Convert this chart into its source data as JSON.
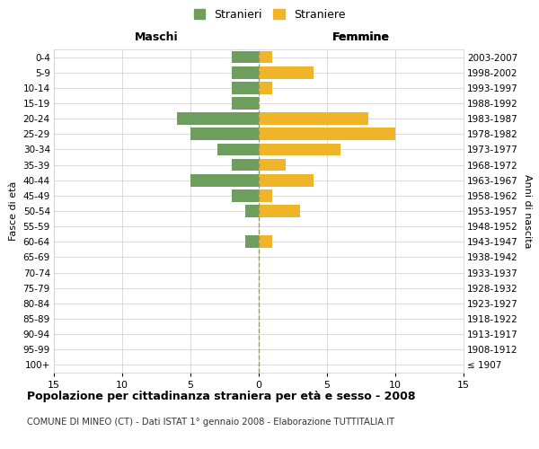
{
  "age_groups": [
    "100+",
    "95-99",
    "90-94",
    "85-89",
    "80-84",
    "75-79",
    "70-74",
    "65-69",
    "60-64",
    "55-59",
    "50-54",
    "45-49",
    "40-44",
    "35-39",
    "30-34",
    "25-29",
    "20-24",
    "15-19",
    "10-14",
    "5-9",
    "0-4"
  ],
  "birth_years": [
    "≤ 1907",
    "1908-1912",
    "1913-1917",
    "1918-1922",
    "1923-1927",
    "1928-1932",
    "1933-1937",
    "1938-1942",
    "1943-1947",
    "1948-1952",
    "1953-1957",
    "1958-1962",
    "1963-1967",
    "1968-1972",
    "1973-1977",
    "1978-1982",
    "1983-1987",
    "1988-1992",
    "1993-1997",
    "1998-2002",
    "2003-2007"
  ],
  "maschi": [
    0,
    0,
    0,
    0,
    0,
    0,
    0,
    0,
    1,
    0,
    1,
    2,
    5,
    2,
    3,
    5,
    6,
    2,
    2,
    2,
    2
  ],
  "femmine": [
    0,
    0,
    0,
    0,
    0,
    0,
    0,
    0,
    1,
    0,
    3,
    1,
    4,
    2,
    6,
    10,
    8,
    0,
    1,
    4,
    1
  ],
  "male_color": "#6e9e5e",
  "female_color": "#f0b429",
  "title": "Popolazione per cittadinanza straniera per età e sesso - 2008",
  "subtitle": "COMUNE DI MINEO (CT) - Dati ISTAT 1° gennaio 2008 - Elaborazione TUTTITALIA.IT",
  "label_maschi": "Maschi",
  "label_femmine": "Femmine",
  "ylabel_left": "Fasce di età",
  "ylabel_right": "Anni di nascita",
  "legend_male": "Stranieri",
  "legend_female": "Straniere",
  "xlim": 15,
  "background_color": "#ffffff",
  "grid_color": "#cccccc",
  "bar_height": 0.8
}
